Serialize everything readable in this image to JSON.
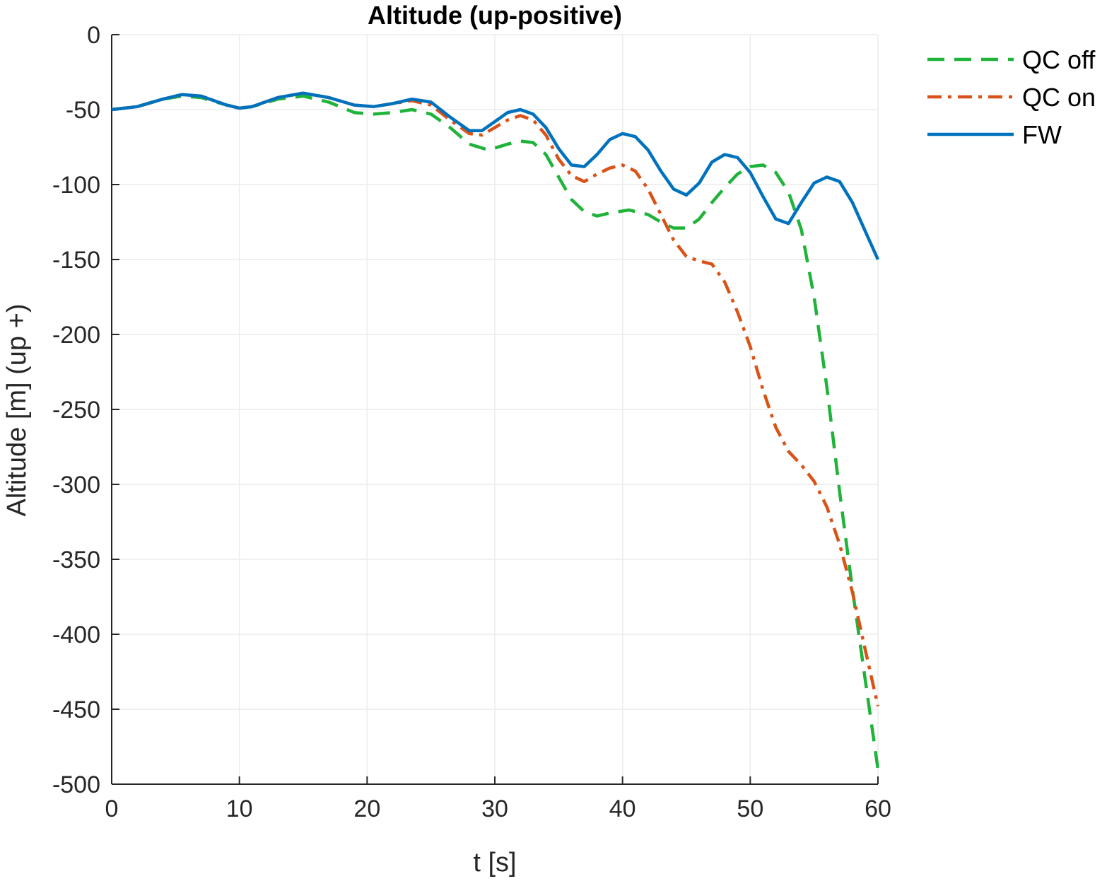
{
  "chart_data": {
    "type": "line",
    "title": "Altitude (up-positive)",
    "xlabel": "t [s]",
    "ylabel": "Altitude [m] (up +)",
    "xlim": [
      0,
      60
    ],
    "ylim": [
      -500,
      0
    ],
    "xticks": [
      0,
      10,
      20,
      30,
      40,
      50,
      60
    ],
    "yticks": [
      0,
      -50,
      -100,
      -150,
      -200,
      -250,
      -300,
      -350,
      -400,
      -450,
      -500
    ],
    "grid": true,
    "legend_position": "top-right-outside",
    "series": [
      {
        "name": "QC off",
        "color": "#1fb33a",
        "style": "dashed",
        "points": [
          [
            0,
            -50
          ],
          [
            2,
            -48
          ],
          [
            4,
            -43
          ],
          [
            5.5,
            -41
          ],
          [
            7,
            -42
          ],
          [
            9,
            -47
          ],
          [
            10,
            -49
          ],
          [
            11,
            -48
          ],
          [
            13,
            -43
          ],
          [
            15,
            -41
          ],
          [
            17,
            -45
          ],
          [
            19,
            -52
          ],
          [
            20.5,
            -53
          ],
          [
            22,
            -52
          ],
          [
            23.5,
            -50
          ],
          [
            25,
            -53
          ],
          [
            26.5,
            -62
          ],
          [
            28,
            -73
          ],
          [
            29.5,
            -77
          ],
          [
            31,
            -73
          ],
          [
            32,
            -71
          ],
          [
            33,
            -72
          ],
          [
            34,
            -80
          ],
          [
            35,
            -95
          ],
          [
            36,
            -110
          ],
          [
            37,
            -118
          ],
          [
            38,
            -121
          ],
          [
            39,
            -119
          ],
          [
            40.5,
            -117
          ],
          [
            42,
            -120
          ],
          [
            43,
            -125
          ],
          [
            44,
            -129
          ],
          [
            45,
            -129
          ],
          [
            46,
            -123
          ],
          [
            47,
            -112
          ],
          [
            48,
            -102
          ],
          [
            49,
            -93
          ],
          [
            50,
            -88
          ],
          [
            51,
            -87
          ],
          [
            52,
            -92
          ],
          [
            53,
            -105
          ],
          [
            54,
            -130
          ],
          [
            55,
            -175
          ],
          [
            56,
            -235
          ],
          [
            57,
            -305
          ],
          [
            58,
            -370
          ],
          [
            59,
            -430
          ],
          [
            60,
            -490
          ]
        ]
      },
      {
        "name": "QC on",
        "color": "#d95319",
        "style": "dashdot",
        "points": [
          [
            0,
            -50
          ],
          [
            2,
            -48
          ],
          [
            4,
            -43
          ],
          [
            5.5,
            -40
          ],
          [
            7,
            -41
          ],
          [
            9,
            -47
          ],
          [
            10,
            -49
          ],
          [
            11,
            -48
          ],
          [
            13,
            -42
          ],
          [
            15,
            -39
          ],
          [
            17,
            -42
          ],
          [
            19,
            -47
          ],
          [
            20.5,
            -48
          ],
          [
            22,
            -46
          ],
          [
            23.5,
            -44
          ],
          [
            25,
            -47
          ],
          [
            26.5,
            -57
          ],
          [
            28,
            -66
          ],
          [
            29,
            -67
          ],
          [
            30,
            -62
          ],
          [
            31,
            -57
          ],
          [
            32,
            -54
          ],
          [
            33,
            -57
          ],
          [
            34,
            -67
          ],
          [
            35,
            -83
          ],
          [
            36,
            -94
          ],
          [
            37,
            -98
          ],
          [
            38,
            -93
          ],
          [
            39,
            -89
          ],
          [
            40,
            -87
          ],
          [
            41,
            -91
          ],
          [
            42,
            -103
          ],
          [
            43,
            -120
          ],
          [
            44,
            -137
          ],
          [
            45,
            -148
          ],
          [
            46,
            -151
          ],
          [
            47,
            -153
          ],
          [
            48,
            -165
          ],
          [
            49,
            -185
          ],
          [
            50,
            -208
          ],
          [
            51,
            -237
          ],
          [
            52,
            -262
          ],
          [
            53,
            -278
          ],
          [
            54,
            -287
          ],
          [
            55,
            -298
          ],
          [
            56,
            -315
          ],
          [
            57,
            -340
          ],
          [
            58,
            -372
          ],
          [
            59,
            -410
          ],
          [
            60,
            -448
          ]
        ]
      },
      {
        "name": "FW",
        "color": "#0072bd",
        "style": "solid",
        "points": [
          [
            0,
            -50
          ],
          [
            2,
            -48
          ],
          [
            4,
            -43
          ],
          [
            5.5,
            -40
          ],
          [
            7,
            -41
          ],
          [
            9,
            -47
          ],
          [
            10,
            -49
          ],
          [
            11,
            -48
          ],
          [
            13,
            -42
          ],
          [
            15,
            -39
          ],
          [
            17,
            -42
          ],
          [
            19,
            -47
          ],
          [
            20.5,
            -48
          ],
          [
            22,
            -46
          ],
          [
            23.5,
            -43
          ],
          [
            25,
            -45
          ],
          [
            26.5,
            -55
          ],
          [
            28,
            -64
          ],
          [
            29,
            -64
          ],
          [
            30,
            -58
          ],
          [
            31,
            -52
          ],
          [
            32,
            -50
          ],
          [
            33,
            -53
          ],
          [
            34,
            -62
          ],
          [
            35,
            -76
          ],
          [
            36,
            -87
          ],
          [
            37,
            -88
          ],
          [
            38,
            -80
          ],
          [
            39,
            -70
          ],
          [
            40,
            -66
          ],
          [
            41,
            -68
          ],
          [
            42,
            -77
          ],
          [
            43,
            -91
          ],
          [
            44,
            -103
          ],
          [
            45,
            -107
          ],
          [
            46,
            -99
          ],
          [
            47,
            -85
          ],
          [
            48,
            -80
          ],
          [
            49,
            -82
          ],
          [
            50,
            -92
          ],
          [
            51,
            -108
          ],
          [
            52,
            -123
          ],
          [
            53,
            -126
          ],
          [
            54,
            -112
          ],
          [
            55,
            -99
          ],
          [
            56,
            -95
          ],
          [
            57,
            -98
          ],
          [
            58,
            -112
          ],
          [
            59,
            -131
          ],
          [
            60,
            -150
          ]
        ]
      }
    ]
  }
}
